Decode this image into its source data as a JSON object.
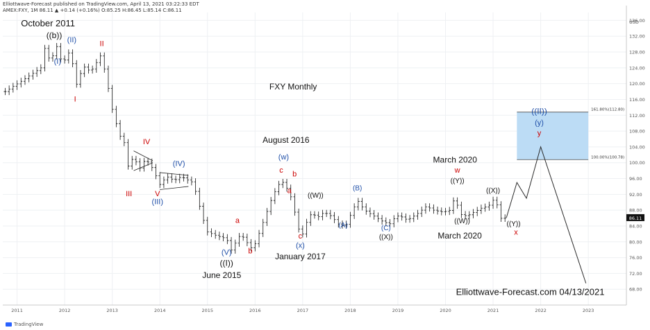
{
  "header": {
    "publisher_line": "Elliottwave-Forecast published on TradingView.com, April 13, 2021 03:22:33 EDT",
    "symbol_line": "AMEX:FXY, 1M 86.11 ▲ +0.14 (+0.16%) O:85.25 H:86.45 L:85.14 C:86.11"
  },
  "brand": {
    "label": "TradingView",
    "icon": "tradingview-logo-icon"
  },
  "chart_data": {
    "type": "line",
    "title": "FXY Monthly",
    "ylim": [
      64,
      138
    ],
    "xlim": [
      2010.7,
      2023.8
    ],
    "y_unit_label": "USD",
    "y_ticks": [
      68,
      72,
      76,
      80,
      84,
      88,
      92,
      96,
      100,
      104,
      108,
      112,
      116,
      120,
      124,
      128,
      132,
      136
    ],
    "x_ticks": [
      "2011",
      "2012",
      "2013",
      "2014",
      "2015",
      "2016",
      "2017",
      "2018",
      "2019",
      "2020",
      "2021",
      "2022",
      "2023"
    ],
    "last_price": "86.11",
    "grid": true,
    "price_path": [
      [
        2010.75,
        118.0
      ],
      [
        2011.2,
        121.5
      ],
      [
        2011.5,
        124.0
      ],
      [
        2011.58,
        129.0
      ],
      [
        2011.7,
        125.5
      ],
      [
        2011.83,
        129.5
      ],
      [
        2011.95,
        125.0
      ],
      [
        2012.05,
        127.0
      ],
      [
        2012.12,
        128.6
      ],
      [
        2012.22,
        121.0
      ],
      [
        2012.26,
        119.5
      ],
      [
        2012.38,
        124.5
      ],
      [
        2012.55,
        123.0
      ],
      [
        2012.75,
        127.0
      ],
      [
        2012.85,
        123.0
      ],
      [
        2013.0,
        113.5
      ],
      [
        2013.15,
        107.0
      ],
      [
        2013.28,
        104.5
      ],
      [
        2013.35,
        97.5
      ],
      [
        2013.45,
        102.5
      ],
      [
        2013.55,
        98.0
      ],
      [
        2013.7,
        101.0
      ],
      [
        2013.85,
        98.5
      ],
      [
        2014.0,
        94.5
      ],
      [
        2014.15,
        96.5
      ],
      [
        2014.3,
        95.5
      ],
      [
        2014.45,
        96.5
      ],
      [
        2014.6,
        95.5
      ],
      [
        2014.7,
        95.0
      ],
      [
        2014.8,
        90.5
      ],
      [
        2014.9,
        86.0
      ],
      [
        2015.0,
        82.5
      ],
      [
        2015.2,
        81.5
      ],
      [
        2015.4,
        80.8
      ],
      [
        2015.5,
        77.9
      ],
      [
        2015.6,
        80.0
      ],
      [
        2015.7,
        82.0
      ],
      [
        2015.85,
        79.5
      ],
      [
        2015.95,
        78.0
      ],
      [
        2016.05,
        81.0
      ],
      [
        2016.2,
        86.0
      ],
      [
        2016.35,
        91.0
      ],
      [
        2016.45,
        93.5
      ],
      [
        2016.55,
        95.5
      ],
      [
        2016.62,
        94.5
      ],
      [
        2016.72,
        92.5
      ],
      [
        2016.8,
        89.5
      ],
      [
        2016.9,
        83.5
      ],
      [
        2017.0,
        82.0
      ],
      [
        2017.1,
        85.5
      ],
      [
        2017.2,
        87.5
      ],
      [
        2017.3,
        86.0
      ],
      [
        2017.45,
        87.5
      ],
      [
        2017.6,
        86.5
      ],
      [
        2017.75,
        84.5
      ],
      [
        2017.9,
        84.0
      ],
      [
        2018.05,
        88.0
      ],
      [
        2018.15,
        90.5
      ],
      [
        2018.3,
        88.0
      ],
      [
        2018.5,
        86.5
      ],
      [
        2018.7,
        85.0
      ],
      [
        2018.85,
        84.5
      ],
      [
        2018.95,
        86.5
      ],
      [
        2019.05,
        86.5
      ],
      [
        2019.2,
        85.5
      ],
      [
        2019.4,
        87.0
      ],
      [
        2019.6,
        89.0
      ],
      [
        2019.75,
        88.0
      ],
      [
        2019.95,
        87.5
      ],
      [
        2020.1,
        88.0
      ],
      [
        2020.2,
        91.5
      ],
      [
        2020.3,
        87.0
      ],
      [
        2020.45,
        86.5
      ],
      [
        2020.6,
        87.5
      ],
      [
        2020.75,
        88.5
      ],
      [
        2020.9,
        89.0
      ],
      [
        2021.0,
        90.5
      ],
      [
        2021.08,
        89.5
      ],
      [
        2021.17,
        85.8
      ],
      [
        2021.28,
        86.11
      ]
    ],
    "projection_path": [
      [
        2021.28,
        86.11
      ],
      [
        2021.5,
        95.0
      ],
      [
        2021.7,
        91.0
      ],
      [
        2022.0,
        104.0
      ],
      [
        2022.95,
        69.5
      ]
    ],
    "ab_lines": [
      {
        "from": [
          2013.45,
          103.0
        ],
        "to": [
          2013.85,
          100.5
        ]
      },
      {
        "from": [
          2013.45,
          98.0
        ],
        "to": [
          2013.85,
          100.0
        ]
      },
      {
        "from": [
          2014.0,
          97.5
        ],
        "to": [
          2014.6,
          96.8
        ]
      },
      {
        "from": [
          2014.0,
          93.2
        ],
        "to": [
          2014.6,
          94.0
        ]
      }
    ],
    "target_zone": {
      "x_from": 2021.5,
      "x_to": 2023.0,
      "y_from": 100.78,
      "y_to": 112.8,
      "label_top": "161.80%(112.80)",
      "label_bottom": "100.00%(100.78)"
    },
    "annotations": [
      {
        "text": "October 2011",
        "x": 2011.65,
        "y": 134.5,
        "color": "#111111",
        "size": 13
      },
      {
        "text": "((b))",
        "x": 2011.78,
        "y": 131.5,
        "color": "#111111",
        "size": 12
      },
      {
        "text": "(II)",
        "x": 2012.15,
        "y": 130.5,
        "color": "#1f4fa8",
        "size": 11
      },
      {
        "text": "(I)",
        "x": 2011.85,
        "y": 125.0,
        "color": "#1f4fa8",
        "size": 11
      },
      {
        "text": "II",
        "x": 2012.78,
        "y": 129.5,
        "color": "#cc0000",
        "size": 11
      },
      {
        "text": "I",
        "x": 2012.22,
        "y": 115.5,
        "color": "#cc0000",
        "size": 11
      },
      {
        "text": "FXY Monthly",
        "x": 2016.8,
        "y": 118.5,
        "color": "#111111",
        "size": 12
      },
      {
        "text": "IV",
        "x": 2013.72,
        "y": 104.7,
        "color": "#cc0000",
        "size": 11
      },
      {
        "text": "III",
        "x": 2013.35,
        "y": 91.5,
        "color": "#cc0000",
        "size": 11
      },
      {
        "text": "(IV)",
        "x": 2014.4,
        "y": 99.2,
        "color": "#1f4fa8",
        "size": 11
      },
      {
        "text": "V",
        "x": 2013.95,
        "y": 91.5,
        "color": "#cc0000",
        "size": 11
      },
      {
        "text": "(III)",
        "x": 2013.95,
        "y": 89.5,
        "color": "#1f4fa8",
        "size": 11
      },
      {
        "text": "August 2016",
        "x": 2016.65,
        "y": 105.0,
        "color": "#111111",
        "size": 12
      },
      {
        "text": "(w)",
        "x": 2016.6,
        "y": 100.8,
        "color": "#1f4fa8",
        "size": 11
      },
      {
        "text": "c",
        "x": 2016.55,
        "y": 97.5,
        "color": "#cc0000",
        "size": 11
      },
      {
        "text": "b",
        "x": 2016.83,
        "y": 96.5,
        "color": "#cc0000",
        "size": 11
      },
      {
        "text": "a",
        "x": 2016.72,
        "y": 92.3,
        "color": "#cc0000",
        "size": 11
      },
      {
        "text": "a",
        "x": 2015.63,
        "y": 84.8,
        "color": "#cc0000",
        "size": 11
      },
      {
        "text": "b",
        "x": 2015.9,
        "y": 77.1,
        "color": "#cc0000",
        "size": 11
      },
      {
        "text": "((W))",
        "x": 2017.27,
        "y": 91.2,
        "color": "#111111",
        "size": 10
      },
      {
        "text": "(B)",
        "x": 2018.15,
        "y": 93.0,
        "color": "#1f4fa8",
        "size": 10
      },
      {
        "text": "(A)",
        "x": 2017.85,
        "y": 83.6,
        "color": "#1f4fa8",
        "size": 10
      },
      {
        "text": "c",
        "x": 2016.95,
        "y": 80.8,
        "color": "#cc0000",
        "size": 11
      },
      {
        "text": "(x)",
        "x": 2016.95,
        "y": 78.5,
        "color": "#1f4fa8",
        "size": 11
      },
      {
        "text": "January 2017",
        "x": 2016.95,
        "y": 75.6,
        "color": "#111111",
        "size": 12
      },
      {
        "text": "(V)",
        "x": 2015.4,
        "y": 76.7,
        "color": "#1f4fa8",
        "size": 11
      },
      {
        "text": "((I))",
        "x": 2015.4,
        "y": 73.9,
        "color": "#111111",
        "size": 12
      },
      {
        "text": "June 2015",
        "x": 2015.3,
        "y": 70.8,
        "color": "#111111",
        "size": 12
      },
      {
        "text": "(C)",
        "x": 2018.75,
        "y": 82.9,
        "color": "#1f4fa8",
        "size": 10
      },
      {
        "text": "((X))",
        "x": 2018.75,
        "y": 80.7,
        "color": "#111111",
        "size": 10
      },
      {
        "text": "March 2020",
        "x": 2020.2,
        "y": 100.0,
        "color": "#111111",
        "size": 12
      },
      {
        "text": "w",
        "x": 2020.25,
        "y": 97.5,
        "color": "#cc0000",
        "size": 11
      },
      {
        "text": "((Y))",
        "x": 2020.25,
        "y": 94.9,
        "color": "#111111",
        "size": 10
      },
      {
        "text": "((W))",
        "x": 2020.35,
        "y": 84.7,
        "color": "#111111",
        "size": 10
      },
      {
        "text": "March 2020",
        "x": 2020.3,
        "y": 80.8,
        "color": "#111111",
        "size": 12
      },
      {
        "text": "((X))",
        "x": 2021.0,
        "y": 92.4,
        "color": "#111111",
        "size": 10
      },
      {
        "text": "((Y))",
        "x": 2021.43,
        "y": 84.0,
        "color": "#111111",
        "size": 10
      },
      {
        "text": "x",
        "x": 2021.48,
        "y": 81.8,
        "color": "#cc0000",
        "size": 11
      },
      {
        "text": "((II))",
        "x": 2021.97,
        "y": 112.3,
        "color": "#1f4fa8",
        "size": 12
      },
      {
        "text": "(y)",
        "x": 2021.97,
        "y": 109.5,
        "color": "#1f4fa8",
        "size": 11
      },
      {
        "text": "y",
        "x": 2021.97,
        "y": 106.9,
        "color": "#cc0000",
        "size": 11
      },
      {
        "text": "Elliottwave-Forecast.com 04/13/2021",
        "x": 2021.78,
        "y": 66.5,
        "color": "#111111",
        "size": 13
      }
    ]
  }
}
